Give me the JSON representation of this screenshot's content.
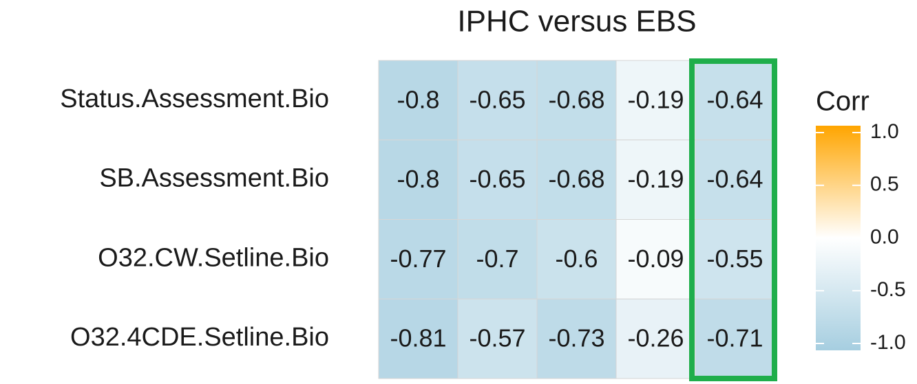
{
  "chart_data": {
    "type": "heatmap",
    "title": "IPHC versus EBS",
    "categories": [
      null,
      null,
      null,
      null,
      null
    ],
    "rows": [
      "Status.Assessment.Bio",
      "SB.Assessment.Bio",
      "O32.CW.Setline.Bio",
      "O32.4CDE.Setline.Bio"
    ],
    "values": [
      [
        -0.8,
        -0.65,
        -0.68,
        -0.19,
        -0.64
      ],
      [
        -0.8,
        -0.65,
        -0.68,
        -0.19,
        -0.64
      ],
      [
        -0.77,
        -0.7,
        -0.6,
        -0.09,
        -0.55
      ],
      [
        -0.81,
        -0.57,
        -0.73,
        -0.26,
        -0.71
      ]
    ],
    "colorbar": {
      "title": "Corr",
      "lim": [
        -1,
        1
      ],
      "colors": [
        "#a6cee0",
        "#ffffff",
        "#ffa500"
      ],
      "ticks": [
        {
          "value": 1,
          "label": "1.0"
        },
        {
          "value": 0.5,
          "label": "0.5"
        },
        {
          "value": 0,
          "label": "0.0"
        },
        {
          "value": -0.5,
          "label": "-0.5"
        },
        {
          "value": -1,
          "label": "-1.0"
        }
      ]
    }
  }
}
